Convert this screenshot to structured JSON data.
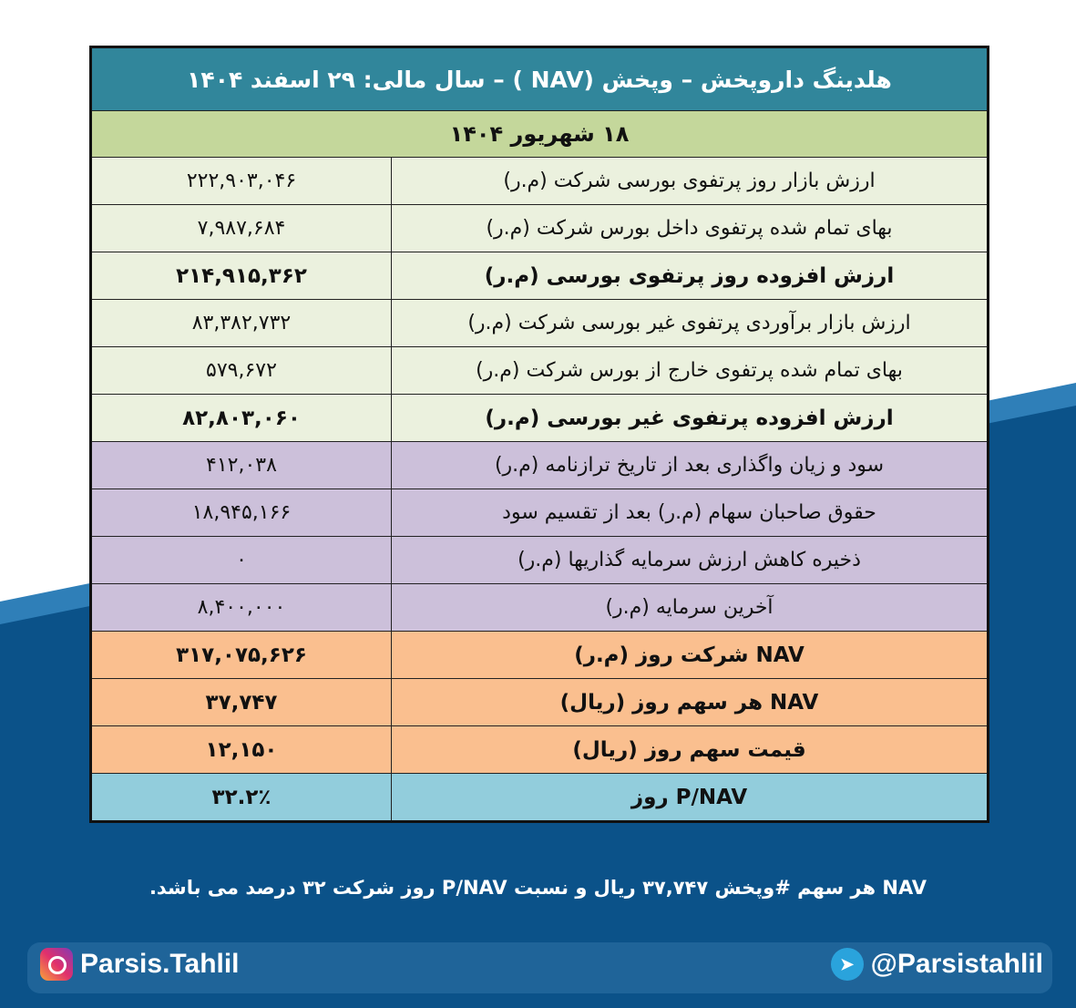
{
  "title": "هلدینگ داروپخش – وپخش (NAV ) – سال مالی: ۲۹ اسفند ۱۴۰۴",
  "date": "۱۸ شهریور ۱۴۰۴",
  "rows": [
    {
      "label": "ارزش بازار روز پرتفوی بورسی شرکت (م.ر)",
      "value": "۲۲۲,۹۰۳,۰۴۶",
      "group": "g"
    },
    {
      "label": "بهای تمام شده پرتفوی داخل بورس شرکت (م.ر)",
      "value": "۷,۹۸۷,۶۸۴",
      "group": "g"
    },
    {
      "label": "ارزش افزوده روز پرتفوی بورسی (م.ر)",
      "value": "۲۱۴,۹۱۵,۳۶۲",
      "group": "g bold"
    },
    {
      "label": "ارزش بازار برآوردی پرتفوی غیر بورسی شرکت (م.ر)",
      "value": "۸۳,۳۸۲,۷۳۲",
      "group": "g"
    },
    {
      "label": "بهای تمام شده پرتفوی خارج از بورس شرکت (م.ر)",
      "value": "۵۷۹,۶۷۲",
      "group": "g"
    },
    {
      "label": "ارزش افزوده پرتفوی غیر بورسی (م.ر)",
      "value": "۸۲,۸۰۳,۰۶۰",
      "group": "g bold"
    },
    {
      "label": "سود و زیان واگذاری بعد از تاریخ ترازنامه (م.ر)",
      "value": "۴۱۲,۰۳۸",
      "group": "p"
    },
    {
      "label": "حقوق صاحبان سهام (م.ر) بعد از تقسیم سود",
      "value": "۱۸,۹۴۵,۱۶۶",
      "group": "p"
    },
    {
      "label": "ذخیره کاهش ارزش سرمایه گذاریها (م.ر)",
      "value": "۰",
      "group": "p"
    },
    {
      "label": "آخرین سرمایه (م.ر)",
      "value": "۸,۴۰۰,۰۰۰",
      "group": "p"
    },
    {
      "label": "NAV  شرکت روز (م.ر)",
      "value": "۳۱۷,۰۷۵,۶۲۶",
      "group": "o"
    },
    {
      "label": "NAV  هر سهم روز (ریال)",
      "value": "۳۷,۷۴۷",
      "group": "o"
    },
    {
      "label": "قیمت سهم روز (ریال)",
      "value": "۱۲,۱۵۰",
      "group": "o"
    },
    {
      "label": "P/NAV روز",
      "value": "۳۲.۲٪",
      "group": "b"
    }
  ],
  "summary": "NAV هر سهم #وپخش ۳۷,۷۴۷ ریال و نسبت P/NAV روز شرکت ۳۲ درصد می باشد.",
  "watermark": "@Parsistahlil",
  "social": {
    "instagram": "Parsis.Tahlil",
    "telegram": "@Parsistahlil",
    "instagram_icon": "instagram-icon",
    "telegram_icon": "telegram-icon"
  },
  "colors": {
    "header": "#31869b",
    "date": "#c4d79b",
    "light": "#ebf1de",
    "purple": "#ccc0da",
    "orange": "#fabf8f",
    "blue": "#92cddc",
    "background": "#0b5289"
  }
}
